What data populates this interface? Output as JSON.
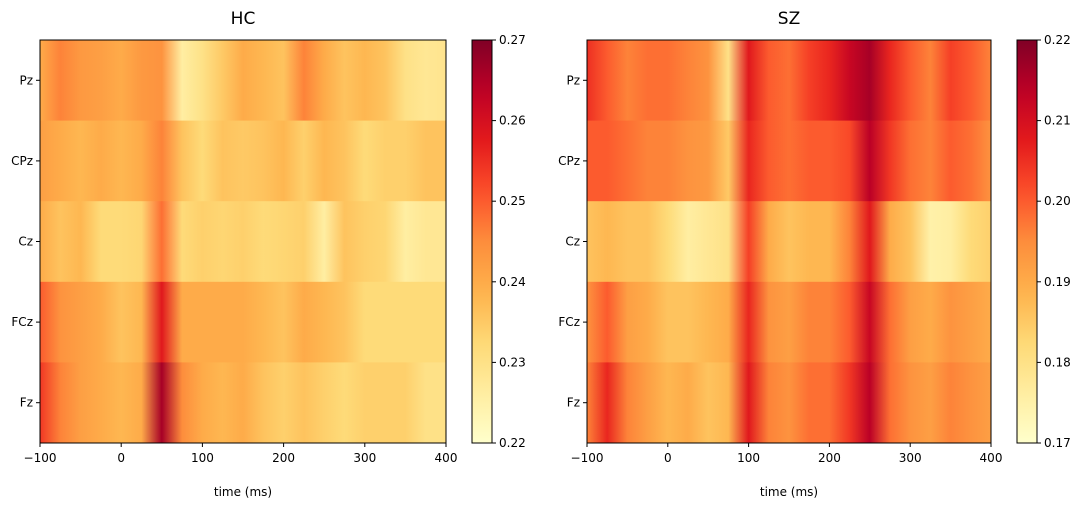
{
  "chart_data": [
    {
      "type": "heatmap",
      "title": "HC",
      "xlabel": "time (ms)",
      "ylabel": "",
      "xlim": [
        -100,
        400
      ],
      "xticks": [
        "−100",
        "0",
        "100",
        "200",
        "300",
        "400"
      ],
      "xtick_values": [
        -100,
        0,
        100,
        200,
        300,
        400
      ],
      "rows": [
        "Pz",
        "CPz",
        "Cz",
        "FCz",
        "Fz"
      ],
      "colormap": "YlOrRd",
      "colorbar": {
        "range": [
          0.22,
          0.27
        ],
        "ticks": [
          "0.22",
          "0.23",
          "0.24",
          "0.25",
          "0.26",
          "0.27"
        ],
        "tick_values": [
          0.22,
          0.23,
          0.24,
          0.25,
          0.26,
          0.27
        ]
      },
      "time_points": [
        -100,
        -75,
        -50,
        -25,
        0,
        25,
        50,
        75,
        100,
        125,
        150,
        175,
        200,
        225,
        250,
        275,
        300,
        325,
        350,
        375,
        400
      ],
      "values": [
        [
          0.24,
          0.246,
          0.243,
          0.242,
          0.24,
          0.243,
          0.244,
          0.226,
          0.23,
          0.235,
          0.24,
          0.238,
          0.236,
          0.246,
          0.24,
          0.236,
          0.238,
          0.236,
          0.23,
          0.228,
          0.229
        ],
        [
          0.242,
          0.24,
          0.238,
          0.24,
          0.238,
          0.24,
          0.246,
          0.236,
          0.232,
          0.236,
          0.235,
          0.236,
          0.238,
          0.234,
          0.238,
          0.236,
          0.232,
          0.234,
          0.234,
          0.236,
          0.236
        ],
        [
          0.24,
          0.236,
          0.238,
          0.232,
          0.232,
          0.233,
          0.248,
          0.232,
          0.234,
          0.233,
          0.234,
          0.232,
          0.233,
          0.234,
          0.226,
          0.236,
          0.234,
          0.233,
          0.226,
          0.228,
          0.228
        ],
        [
          0.25,
          0.244,
          0.242,
          0.24,
          0.236,
          0.238,
          0.258,
          0.24,
          0.24,
          0.24,
          0.24,
          0.238,
          0.236,
          0.24,
          0.238,
          0.236,
          0.232,
          0.232,
          0.232,
          0.232,
          0.232
        ],
        [
          0.254,
          0.246,
          0.242,
          0.24,
          0.238,
          0.24,
          0.266,
          0.245,
          0.24,
          0.238,
          0.24,
          0.236,
          0.234,
          0.236,
          0.234,
          0.232,
          0.234,
          0.234,
          0.234,
          0.23,
          0.23
        ]
      ]
    },
    {
      "type": "heatmap",
      "title": "SZ",
      "xlabel": "time (ms)",
      "ylabel": "",
      "xlim": [
        -100,
        400
      ],
      "xticks": [
        "−100",
        "0",
        "100",
        "200",
        "300",
        "400"
      ],
      "xtick_values": [
        -100,
        0,
        100,
        200,
        300,
        400
      ],
      "rows": [
        "Pz",
        "CPz",
        "Cz",
        "FCz",
        "Fz"
      ],
      "colormap": "YlOrRd",
      "colorbar": {
        "range": [
          0.17,
          0.22
        ],
        "ticks": [
          "0.17",
          "0.18",
          "0.19",
          "0.20",
          "0.21",
          "0.22"
        ],
        "tick_values": [
          0.17,
          0.18,
          0.19,
          0.2,
          0.21,
          0.22
        ]
      },
      "time_points": [
        -100,
        -75,
        -50,
        -25,
        0,
        25,
        50,
        75,
        100,
        125,
        150,
        175,
        200,
        225,
        250,
        275,
        300,
        325,
        350,
        375,
        400
      ],
      "values": [
        [
          0.205,
          0.2,
          0.196,
          0.198,
          0.198,
          0.196,
          0.194,
          0.18,
          0.208,
          0.2,
          0.198,
          0.203,
          0.206,
          0.212,
          0.216,
          0.206,
          0.2,
          0.196,
          0.203,
          0.2,
          0.196
        ],
        [
          0.2,
          0.2,
          0.198,
          0.196,
          0.196,
          0.194,
          0.193,
          0.185,
          0.206,
          0.2,
          0.198,
          0.2,
          0.2,
          0.202,
          0.214,
          0.204,
          0.198,
          0.196,
          0.2,
          0.198,
          0.194
        ],
        [
          0.186,
          0.188,
          0.186,
          0.186,
          0.182,
          0.176,
          0.178,
          0.18,
          0.203,
          0.19,
          0.186,
          0.188,
          0.188,
          0.196,
          0.208,
          0.19,
          0.186,
          0.175,
          0.176,
          0.182,
          0.184
        ],
        [
          0.194,
          0.2,
          0.192,
          0.19,
          0.186,
          0.186,
          0.188,
          0.19,
          0.206,
          0.194,
          0.192,
          0.196,
          0.196,
          0.2,
          0.212,
          0.198,
          0.192,
          0.19,
          0.194,
          0.192,
          0.19
        ],
        [
          0.196,
          0.206,
          0.196,
          0.192,
          0.188,
          0.19,
          0.186,
          0.188,
          0.208,
          0.196,
          0.194,
          0.198,
          0.198,
          0.204,
          0.214,
          0.198,
          0.194,
          0.192,
          0.196,
          0.194,
          0.192
        ]
      ]
    }
  ]
}
